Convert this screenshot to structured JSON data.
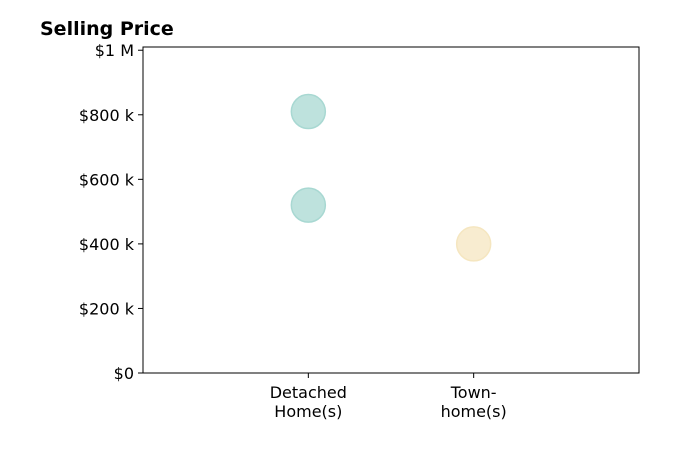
{
  "chart_data": {
    "type": "scatter",
    "title": "Selling Price",
    "xlabel": "",
    "ylabel": "",
    "categories": [
      [
        "Detached",
        "Home(s)"
      ],
      [
        "Town-",
        "home(s)"
      ]
    ],
    "yticks": [
      {
        "value": 0,
        "label": "$0"
      },
      {
        "value": 200000,
        "label": "$200 k"
      },
      {
        "value": 400000,
        "label": "$400 k"
      },
      {
        "value": 600000,
        "label": "$600 k"
      },
      {
        "value": 800000,
        "label": "$800 k"
      },
      {
        "value": 1000000,
        "label": "$1 M"
      }
    ],
    "ylim": [
      0,
      1010000
    ],
    "xlim": [
      -1,
      2
    ],
    "grid": false,
    "points": [
      {
        "category_index": 0,
        "value": 810000,
        "color": "#a8d8d2"
      },
      {
        "category_index": 0,
        "value": 520000,
        "color": "#a8d8d2"
      },
      {
        "category_index": 1,
        "value": 400000,
        "color": "#f5e6c0"
      }
    ]
  }
}
